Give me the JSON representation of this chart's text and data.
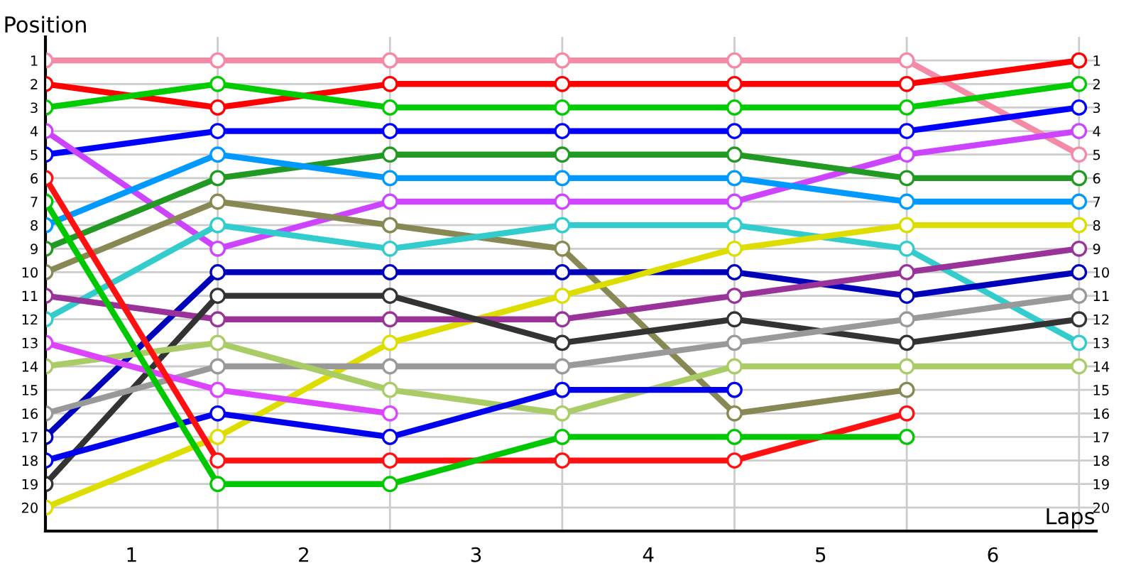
{
  "chart_data": {
    "type": "line",
    "xlabel": "Laps",
    "ylabel": "Position",
    "x": [
      0,
      1,
      2,
      3,
      4,
      5,
      6
    ],
    "xlim": [
      0,
      6.1
    ],
    "xticks": [
      {
        "value": 0.5,
        "label": "1"
      },
      {
        "value": 1.5,
        "label": "2"
      },
      {
        "value": 2.5,
        "label": "3"
      },
      {
        "value": 3.5,
        "label": "4"
      },
      {
        "value": 4.5,
        "label": "5"
      },
      {
        "value": 5.5,
        "label": "6"
      },
      {
        "value": 1,
        "label": null
      },
      {
        "value": 2,
        "label": null
      },
      {
        "value": 3,
        "label": null
      },
      {
        "value": 4,
        "label": null
      },
      {
        "value": 5,
        "label": null
      },
      {
        "value": 6,
        "label": null
      }
    ],
    "ylim": [
      21,
      0
    ],
    "yticks": [
      1,
      2,
      3,
      4,
      5,
      6,
      7,
      8,
      9,
      10,
      11,
      12,
      13,
      14,
      15,
      16,
      17,
      18,
      19,
      20
    ],
    "y2lim": [
      21,
      0
    ],
    "y2ticks": [
      1,
      2,
      3,
      4,
      5,
      6,
      7,
      8,
      9,
      10,
      11,
      12,
      13,
      14,
      15,
      16,
      17,
      18,
      19,
      20
    ],
    "grid": true,
    "legend": false,
    "marker": "circle",
    "line_style": "solid",
    "series": [
      {
        "color": "#f48aa6",
        "values": [
          1,
          1,
          1,
          1,
          1,
          1,
          5
        ]
      },
      {
        "color": "#ff0000",
        "values": [
          2,
          3,
          2,
          2,
          2,
          2,
          1
        ]
      },
      {
        "color": "#00cc00",
        "values": [
          3,
          2,
          3,
          3,
          3,
          3,
          2
        ]
      },
      {
        "color": "#0000ff",
        "values": [
          5,
          4,
          4,
          4,
          4,
          4,
          3
        ]
      },
      {
        "color": "#cc44ff",
        "values": [
          4,
          9,
          7,
          7,
          7,
          5,
          4
        ]
      },
      {
        "color": "#229922",
        "values": [
          9,
          6,
          5,
          5,
          5,
          6,
          6
        ]
      },
      {
        "color": "#0099ff",
        "values": [
          8,
          5,
          6,
          6,
          6,
          7,
          7
        ]
      },
      {
        "color": "#888855",
        "values": [
          10,
          7,
          8,
          9,
          16,
          15,
          null
        ]
      },
      {
        "color": "#33cccc",
        "values": [
          12,
          8,
          9,
          8,
          8,
          9,
          13
        ]
      },
      {
        "color": "#0000bb",
        "values": [
          17,
          10,
          10,
          10,
          10,
          11,
          10
        ]
      },
      {
        "color": "#dddd00",
        "values": [
          20,
          17,
          13,
          11,
          9,
          8,
          8
        ]
      },
      {
        "color": "#993399",
        "values": [
          11,
          12,
          12,
          12,
          11,
          10,
          9
        ]
      },
      {
        "color": "#333333",
        "values": [
          19,
          11,
          11,
          13,
          12,
          13,
          12
        ]
      },
      {
        "color": "#999999",
        "values": [
          16,
          14,
          14,
          14,
          13,
          12,
          11
        ]
      },
      {
        "color": "#aacc66",
        "values": [
          14,
          13,
          15,
          16,
          14,
          14,
          14
        ]
      },
      {
        "color": "#dd44ff",
        "values": [
          13,
          15,
          16,
          null,
          null,
          null,
          null
        ]
      },
      {
        "color": "#0000ee",
        "values": [
          18,
          16,
          17,
          15,
          15,
          null,
          null
        ]
      },
      {
        "color": "#ff1111",
        "values": [
          6,
          18,
          18,
          18,
          18,
          16,
          null
        ]
      },
      {
        "color": "#00c800",
        "values": [
          7,
          19,
          19,
          17,
          17,
          17,
          null
        ]
      }
    ]
  }
}
